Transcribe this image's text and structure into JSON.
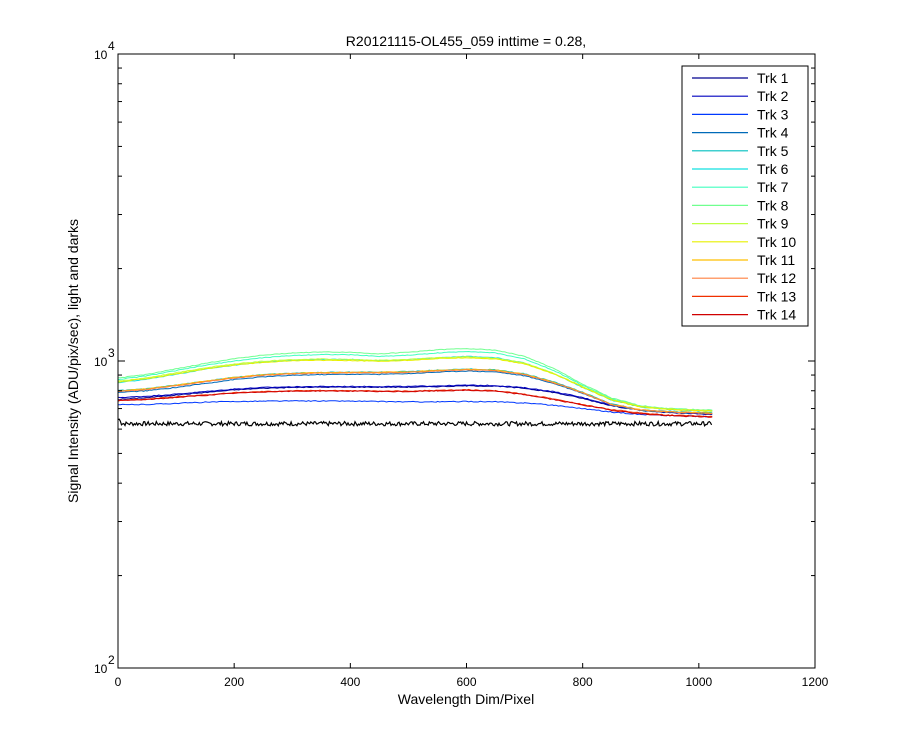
{
  "chart_data": {
    "type": "line",
    "title": "R20121115-OL455_059 inttime = 0.28,",
    "xlabel": "Wavelength Dim/Pixel",
    "ylabel": "Signal Intensity (ADU/pix/sec), light and darks",
    "xlim": [
      0,
      1200
    ],
    "ylim": [
      100,
      10000
    ],
    "yscale": "log",
    "x_ticks": [
      0,
      200,
      400,
      600,
      800,
      1000,
      1200
    ],
    "y_ticks": [
      {
        "value": 100,
        "base": "10",
        "exp": "2"
      },
      {
        "value": 1000,
        "base": "10",
        "exp": "3"
      },
      {
        "value": 10000,
        "base": "10",
        "exp": "4"
      }
    ],
    "grid": false,
    "legend_position": "top-right",
    "x": [
      0,
      50,
      100,
      150,
      200,
      250,
      300,
      350,
      400,
      450,
      500,
      550,
      600,
      650,
      700,
      750,
      800,
      850,
      900,
      950,
      1000,
      1023
    ],
    "series": [
      {
        "name": "Trk 1",
        "color": "#00008f",
        "values": [
          750,
          760,
          775,
          790,
          805,
          815,
          820,
          822,
          822,
          822,
          822,
          825,
          830,
          828,
          815,
          790,
          755,
          715,
          690,
          678,
          672,
          670
        ]
      },
      {
        "name": "Trk 2",
        "color": "#0000bf",
        "values": [
          760,
          768,
          780,
          795,
          810,
          820,
          824,
          826,
          826,
          826,
          826,
          830,
          834,
          832,
          818,
          795,
          760,
          718,
          692,
          680,
          674,
          672
        ]
      },
      {
        "name": "Trk 3",
        "color": "#0038ff",
        "values": [
          720,
          722,
          728,
          734,
          738,
          740,
          741,
          741,
          740,
          738,
          736,
          736,
          738,
          736,
          730,
          718,
          700,
          682,
          670,
          664,
          660,
          658
        ]
      },
      {
        "name": "Trk 4",
        "color": "#006ab8",
        "values": [
          790,
          800,
          820,
          845,
          870,
          888,
          898,
          903,
          905,
          905,
          910,
          920,
          928,
          922,
          895,
          845,
          785,
          720,
          690,
          680,
          676,
          674
        ]
      },
      {
        "name": "Trk 5",
        "color": "#00bfbf",
        "values": [
          800,
          812,
          834,
          860,
          885,
          903,
          913,
          918,
          920,
          920,
          924,
          934,
          942,
          936,
          908,
          855,
          790,
          724,
          694,
          684,
          680,
          678
        ]
      },
      {
        "name": "Trk 6",
        "color": "#10e0e0",
        "values": [
          850,
          872,
          905,
          940,
          968,
          990,
          1005,
          1012,
          1012,
          1000,
          1010,
          1025,
          1035,
          1025,
          985,
          910,
          820,
          745,
          708,
          694,
          688,
          686
        ]
      },
      {
        "name": "Trk 7",
        "color": "#40ffbf",
        "values": [
          870,
          895,
          930,
          968,
          1000,
          1025,
          1042,
          1050,
          1048,
          1035,
          1045,
          1062,
          1075,
          1062,
          1015,
          932,
          832,
          752,
          712,
          698,
          692,
          690
        ]
      },
      {
        "name": "Trk 8",
        "color": "#70ff8f",
        "values": [
          880,
          905,
          942,
          982,
          1018,
          1045,
          1062,
          1070,
          1068,
          1055,
          1068,
          1088,
          1098,
          1085,
          1035,
          945,
          840,
          756,
          715,
          700,
          694,
          692
        ]
      },
      {
        "name": "Trk 9",
        "color": "#bfff40",
        "values": [
          860,
          882,
          915,
          950,
          978,
          998,
          1010,
          1015,
          1012,
          1005,
          1012,
          1025,
          1032,
          1022,
          985,
          912,
          825,
          748,
          710,
          697,
          690,
          688
        ]
      },
      {
        "name": "Trk 10",
        "color": "#e8f000",
        "values": [
          855,
          876,
          908,
          942,
          970,
          990,
          1002,
          1006,
          1004,
          998,
          1005,
          1018,
          1025,
          1015,
          978,
          908,
          822,
          746,
          708,
          695,
          689,
          687
        ]
      },
      {
        "name": "Trk 11",
        "color": "#ffbf00",
        "values": [
          800,
          812,
          834,
          860,
          884,
          902,
          912,
          917,
          919,
          919,
          922,
          932,
          940,
          934,
          906,
          852,
          788,
          722,
          693,
          683,
          678,
          676
        ]
      },
      {
        "name": "Trk 12",
        "color": "#ff8040",
        "values": [
          795,
          808,
          830,
          856,
          880,
          898,
          908,
          913,
          915,
          915,
          918,
          928,
          936,
          930,
          902,
          850,
          786,
          720,
          692,
          682,
          677,
          675
        ]
      },
      {
        "name": "Trk 13",
        "color": "#f03000",
        "values": [
          745,
          752,
          764,
          776,
          788,
          796,
          800,
          802,
          801,
          798,
          798,
          802,
          806,
          800,
          780,
          752,
          722,
          694,
          676,
          666,
          662,
          660
        ]
      },
      {
        "name": "Trk 14",
        "color": "#d00000",
        "values": [
          742,
          749,
          761,
          773,
          785,
          793,
          797,
          799,
          798,
          795,
          795,
          799,
          803,
          797,
          777,
          749,
          719,
          691,
          673,
          663,
          659,
          657
        ]
      }
    ],
    "dark": {
      "color": "#000000",
      "level": 625,
      "noise": 10
    }
  }
}
